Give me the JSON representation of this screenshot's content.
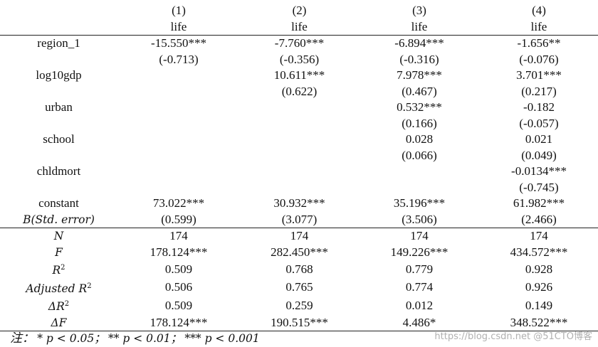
{
  "columns": {
    "nums": [
      "(1)",
      "(2)",
      "(3)",
      "(4)"
    ],
    "depvar": [
      "life",
      "life",
      "life",
      "life"
    ]
  },
  "rows": {
    "region": {
      "label": "region_1",
      "coef": [
        "-15.550***",
        "-7.760***",
        "-6.894***",
        "-1.656**"
      ],
      "se": [
        "(-0.713)",
        "(-0.356)",
        "(-0.316)",
        "(-0.076)"
      ]
    },
    "log10gdp": {
      "label": "log10gdp",
      "coef": [
        "",
        "10.611***",
        "7.978***",
        "3.701***"
      ],
      "se": [
        "",
        "(0.622)",
        "(0.467)",
        "(0.217)"
      ]
    },
    "urban": {
      "label": "urban",
      "coef": [
        "",
        "",
        "0.532***",
        "-0.182"
      ],
      "se": [
        "",
        "",
        "(0.166)",
        "(-0.057)"
      ]
    },
    "school": {
      "label": "school",
      "coef": [
        "",
        "",
        "0.028",
        "0.021"
      ],
      "se": [
        "",
        "",
        "(0.066)",
        "(0.049)"
      ]
    },
    "chldmort": {
      "label": "chldmort",
      "coef": [
        "",
        "",
        "",
        "-0.0134***"
      ],
      "se": [
        "",
        "",
        "",
        "(-0.745)"
      ]
    },
    "constant": {
      "label": "constant",
      "label2": "B(Std. error)",
      "coef": [
        "73.022***",
        "30.932***",
        "35.196***",
        "61.982***"
      ],
      "se": [
        "(0.599)",
        "(3.077)",
        "(3.506)",
        "(2.466)"
      ]
    }
  },
  "stats": {
    "n": {
      "label": "N",
      "values": [
        "174",
        "174",
        "174",
        "174"
      ]
    },
    "f": {
      "label": "F",
      "values": [
        "178.124***",
        "282.450***",
        "149.226***",
        "434.572***"
      ]
    },
    "r2": {
      "label": "R",
      "sup": "2",
      "values": [
        "0.509",
        "0.768",
        "0.779",
        "0.928"
      ]
    },
    "adj_r2": {
      "label": "Adjusted R",
      "sup": "2",
      "values": [
        "0.506",
        "0.765",
        "0.774",
        "0.926"
      ]
    },
    "d_r2": {
      "label": "ΔR",
      "sup": "2",
      "values": [
        "0.509",
        "0.259",
        "0.012",
        "0.149"
      ]
    },
    "d_f": {
      "label": "ΔF",
      "values": [
        "178.124***",
        "190.515***",
        "4.486*",
        "348.522***"
      ]
    }
  },
  "note": {
    "prefix": "注：",
    "s1": "* p < 0.05；",
    "s2": "** p < 0.01；",
    "s3": "*** p < 0.001"
  },
  "watermark": "https://blog.csdn.net @51CTO博客"
}
